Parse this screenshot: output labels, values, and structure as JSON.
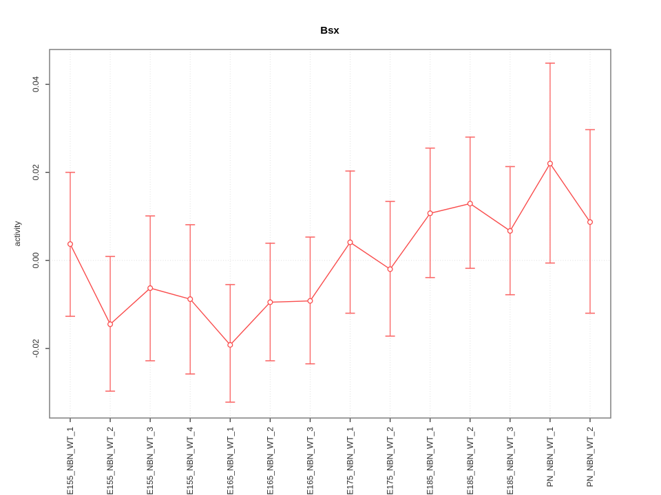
{
  "chart_data": {
    "type": "line",
    "title": "Bsx",
    "xlabel": "",
    "ylabel": "activity",
    "categories": [
      "E155_NBN_WT_1",
      "E155_NBN_WT_2",
      "E155_NBN_WT_3",
      "E155_NBN_WT_4",
      "E165_NBN_WT_1",
      "E165_NBN_WT_2",
      "E165_NBN_WT_3",
      "E175_NBN_WT_1",
      "E175_NBN_WT_2",
      "E185_NBN_WT_1",
      "E185_NBN_WT_2",
      "E185_NBN_WT_3",
      "PN_NBN_WT_1",
      "PN_NBN_WT_2"
    ],
    "series": [
      {
        "name": "activity",
        "values": [
          0.0037,
          -0.0145,
          -0.0063,
          -0.0088,
          -0.0192,
          -0.0095,
          -0.0092,
          0.0041,
          -0.002,
          0.0107,
          0.0129,
          0.0067,
          0.022,
          0.0087
        ],
        "lower": [
          -0.0127,
          -0.0297,
          -0.0228,
          -0.0258,
          -0.0322,
          -0.0228,
          -0.0235,
          -0.012,
          -0.0172,
          -0.0039,
          -0.0018,
          -0.0078,
          -0.0006,
          -0.012
        ],
        "upper": [
          0.02,
          0.0009,
          0.0101,
          0.0081,
          -0.0055,
          0.0039,
          0.0053,
          0.0203,
          0.0134,
          0.0255,
          0.028,
          0.0213,
          0.0448,
          0.0297
        ]
      }
    ],
    "ylim": [
      -0.0358,
      0.0479
    ],
    "yticks": [
      -0.02,
      0,
      0.02,
      0.04
    ],
    "ytick_labels": [
      "-0.02",
      "0.00",
      "0.02",
      "0.04"
    ],
    "zero_line": 0,
    "grid": "dotted vertical line at each category, dotted horizontal line at y=0",
    "legend": "none",
    "marker": "open-circle",
    "colors": {
      "line": "#f94c4c",
      "marker_stroke": "#f94c4c",
      "marker_fill": "#ffffff",
      "error_bar": "#fa6868",
      "grid": "#dedede",
      "box": "#7e7e7e",
      "tick": "#3c3c3c",
      "text": "#2e2e2e"
    }
  }
}
